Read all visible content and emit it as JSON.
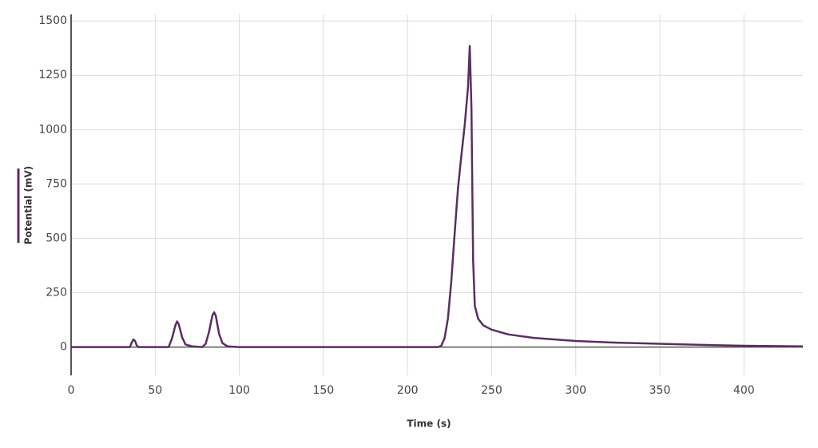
{
  "chart_data": {
    "type": "line",
    "x_label": "Time (s)",
    "y_label": "Potential (mV)",
    "xlim": [
      0,
      435
    ],
    "ylim": [
      -130,
      1530
    ],
    "xticks": [
      0,
      50,
      100,
      150,
      200,
      250,
      300,
      350,
      400
    ],
    "yticks": [
      0,
      250,
      500,
      750,
      1000,
      1250,
      1500
    ],
    "grid": true,
    "series": [
      {
        "color": "#5b2d62",
        "x": [
          0,
          35,
          36,
          37,
          38,
          39,
          40,
          58,
          60,
          62,
          63,
          64,
          66,
          68,
          72,
          78,
          80,
          82,
          84,
          85,
          86,
          88,
          90,
          93,
          100,
          200,
          218,
          220,
          222,
          224,
          226,
          228,
          230,
          232,
          234,
          236,
          237,
          238,
          239,
          240,
          242,
          245,
          250,
          260,
          275,
          300,
          325,
          350,
          375,
          400,
          435
        ],
        "values": [
          0,
          0,
          20,
          35,
          28,
          8,
          0,
          0,
          40,
          100,
          118,
          105,
          45,
          12,
          3,
          0,
          15,
          70,
          145,
          160,
          145,
          60,
          18,
          3,
          0,
          0,
          0,
          5,
          40,
          130,
          300,
          520,
          730,
          880,
          1020,
          1200,
          1385,
          1100,
          400,
          190,
          130,
          100,
          80,
          58,
          42,
          28,
          20,
          15,
          10,
          6,
          3
        ]
      }
    ]
  }
}
